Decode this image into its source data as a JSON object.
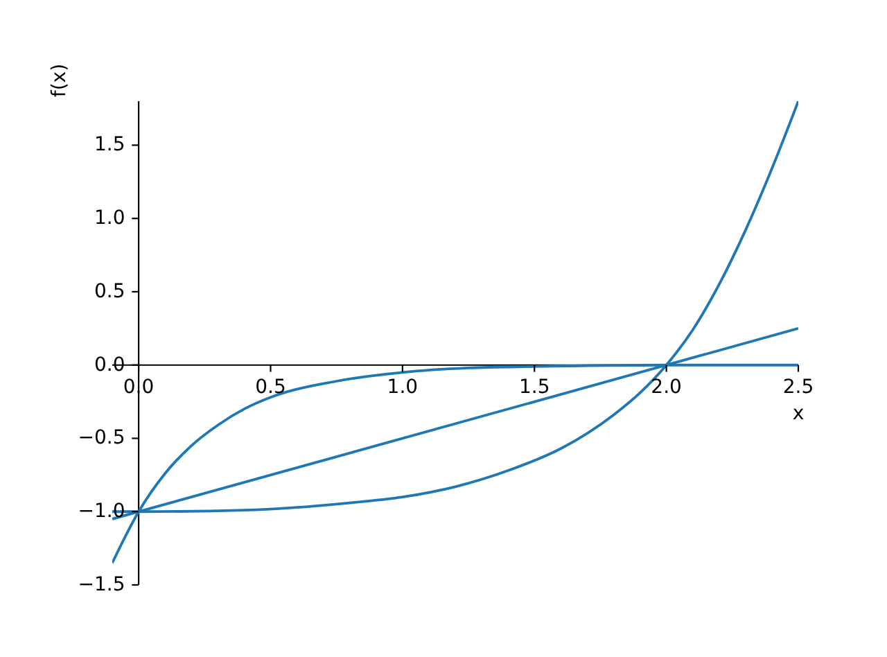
{
  "chart_data": {
    "type": "line",
    "xlabel": "x",
    "ylabel": "f(x)",
    "line_style": "solid",
    "xlim": [
      -0.1,
      2.5
    ],
    "ylim": [
      -1.5,
      1.8
    ],
    "xticks": [
      {
        "value": 0,
        "label": "0.0"
      },
      {
        "value": 0.5,
        "label": "0.5"
      },
      {
        "value": 1,
        "label": "1.0"
      },
      {
        "value": 1.5,
        "label": "1.5"
      },
      {
        "value": 2,
        "label": "2.0"
      },
      {
        "value": 2.5,
        "label": "2.5"
      }
    ],
    "yticks": [
      {
        "value": -1.5,
        "label": "−1.5"
      },
      {
        "value": -1,
        "label": "−1.0"
      },
      {
        "value": -0.5,
        "label": "−0.5"
      },
      {
        "value": 0,
        "label": "0.0"
      },
      {
        "value": 0.5,
        "label": "0.5"
      },
      {
        "value": 1,
        "label": "1.0"
      },
      {
        "value": 1.5,
        "label": "1.5"
      }
    ],
    "series": [
      {
        "color": "#1f77b4",
        "x": [
          -0.1,
          2.5
        ],
        "values": [
          -1.05,
          0.25
        ]
      },
      {
        "color": "#1f77b4",
        "x": [
          -0.1,
          0,
          0.4,
          0.8,
          1.0,
          1.2,
          1.4,
          1.6,
          1.8,
          1.9,
          2.0,
          2.1,
          2.2,
          2.3,
          2.4,
          2.5
        ],
        "values": [
          -1.0,
          -1.0,
          -0.99,
          -0.94,
          -0.9,
          -0.83,
          -0.72,
          -0.57,
          -0.34,
          -0.19,
          0.0,
          0.24,
          0.55,
          0.92,
          1.34,
          1.8
        ]
      },
      {
        "color": "#1f77b4",
        "x": [
          -0.1,
          0,
          0.1,
          0.2,
          0.3,
          0.4,
          0.5,
          0.75,
          1.0,
          1.25,
          1.5,
          2.0,
          2.5
        ],
        "values": [
          -1.35,
          -1.0,
          -0.74,
          -0.55,
          -0.41,
          -0.3,
          -0.22,
          -0.11,
          -0.05,
          -0.02,
          -0.01,
          0.0,
          0.0
        ]
      }
    ]
  }
}
